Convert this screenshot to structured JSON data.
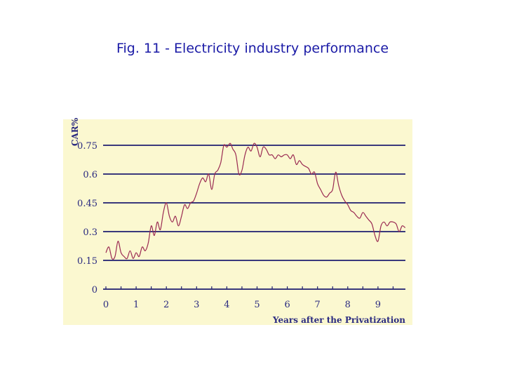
{
  "figure": {
    "title": "Fig. 11 - Electricity industry performance"
  },
  "chart_data": {
    "type": "line",
    "title": "Fig. 11 - Electricity industry performance",
    "xlabel": "Years after the Privatization",
    "ylabel": "CAR%",
    "xlim": [
      0,
      9.9
    ],
    "ylim": [
      0,
      0.75
    ],
    "xticks": [
      "0",
      "1",
      "2",
      "3",
      "4",
      "5",
      "6",
      "7",
      "8",
      "9"
    ],
    "yticks": [
      "0",
      "0.15",
      "0.3",
      "0.45",
      "0.6",
      "0.75"
    ],
    "grid": "horizontal",
    "colors": {
      "background": "#fbf8d0",
      "grid": "#1e1e70",
      "line": "#9a2a52",
      "text": "#2a2a80",
      "title": "#1a1aa6"
    },
    "series": [
      {
        "x": [
          0.0,
          0.1,
          0.2,
          0.3,
          0.4,
          0.5,
          0.6,
          0.7,
          0.8,
          0.9,
          1.0,
          1.1,
          1.2,
          1.3,
          1.4,
          1.5,
          1.6,
          1.7,
          1.8,
          1.9,
          2.0,
          2.1,
          2.2,
          2.3,
          2.4,
          2.5,
          2.6,
          2.7,
          2.8,
          2.9,
          3.0,
          3.1,
          3.2,
          3.3,
          3.4,
          3.5,
          3.6,
          3.7,
          3.8,
          3.9,
          4.0,
          4.1,
          4.15,
          4.2,
          4.3,
          4.4,
          4.5,
          4.6,
          4.7,
          4.8,
          4.9,
          5.0,
          5.1,
          5.2,
          5.3,
          5.4,
          5.5,
          5.6,
          5.7,
          5.8,
          5.9,
          6.0,
          6.1,
          6.2,
          6.3,
          6.4,
          6.5,
          6.6,
          6.7,
          6.8,
          6.9,
          7.0,
          7.1,
          7.2,
          7.3,
          7.4,
          7.5,
          7.6,
          7.7,
          7.8,
          7.9,
          8.0,
          8.1,
          8.2,
          8.3,
          8.4,
          8.5,
          8.6,
          8.7,
          8.8,
          8.9,
          9.0,
          9.1,
          9.2,
          9.3,
          9.4,
          9.5,
          9.6,
          9.7,
          9.8,
          9.9
        ],
        "y": [
          0.19,
          0.22,
          0.16,
          0.17,
          0.25,
          0.19,
          0.17,
          0.16,
          0.2,
          0.16,
          0.19,
          0.17,
          0.22,
          0.2,
          0.24,
          0.33,
          0.28,
          0.35,
          0.31,
          0.4,
          0.45,
          0.38,
          0.35,
          0.38,
          0.33,
          0.38,
          0.44,
          0.42,
          0.45,
          0.46,
          0.5,
          0.55,
          0.58,
          0.56,
          0.6,
          0.52,
          0.6,
          0.62,
          0.66,
          0.75,
          0.74,
          0.76,
          0.75,
          0.73,
          0.7,
          0.6,
          0.62,
          0.7,
          0.74,
          0.72,
          0.76,
          0.74,
          0.69,
          0.74,
          0.73,
          0.7,
          0.7,
          0.68,
          0.7,
          0.69,
          0.7,
          0.7,
          0.68,
          0.7,
          0.65,
          0.67,
          0.65,
          0.64,
          0.63,
          0.6,
          0.61,
          0.55,
          0.52,
          0.49,
          0.48,
          0.5,
          0.52,
          0.61,
          0.54,
          0.49,
          0.46,
          0.44,
          0.41,
          0.4,
          0.38,
          0.37,
          0.4,
          0.38,
          0.36,
          0.34,
          0.28,
          0.25,
          0.33,
          0.35,
          0.33,
          0.35,
          0.35,
          0.34,
          0.3,
          0.33,
          0.32
        ]
      }
    ]
  }
}
